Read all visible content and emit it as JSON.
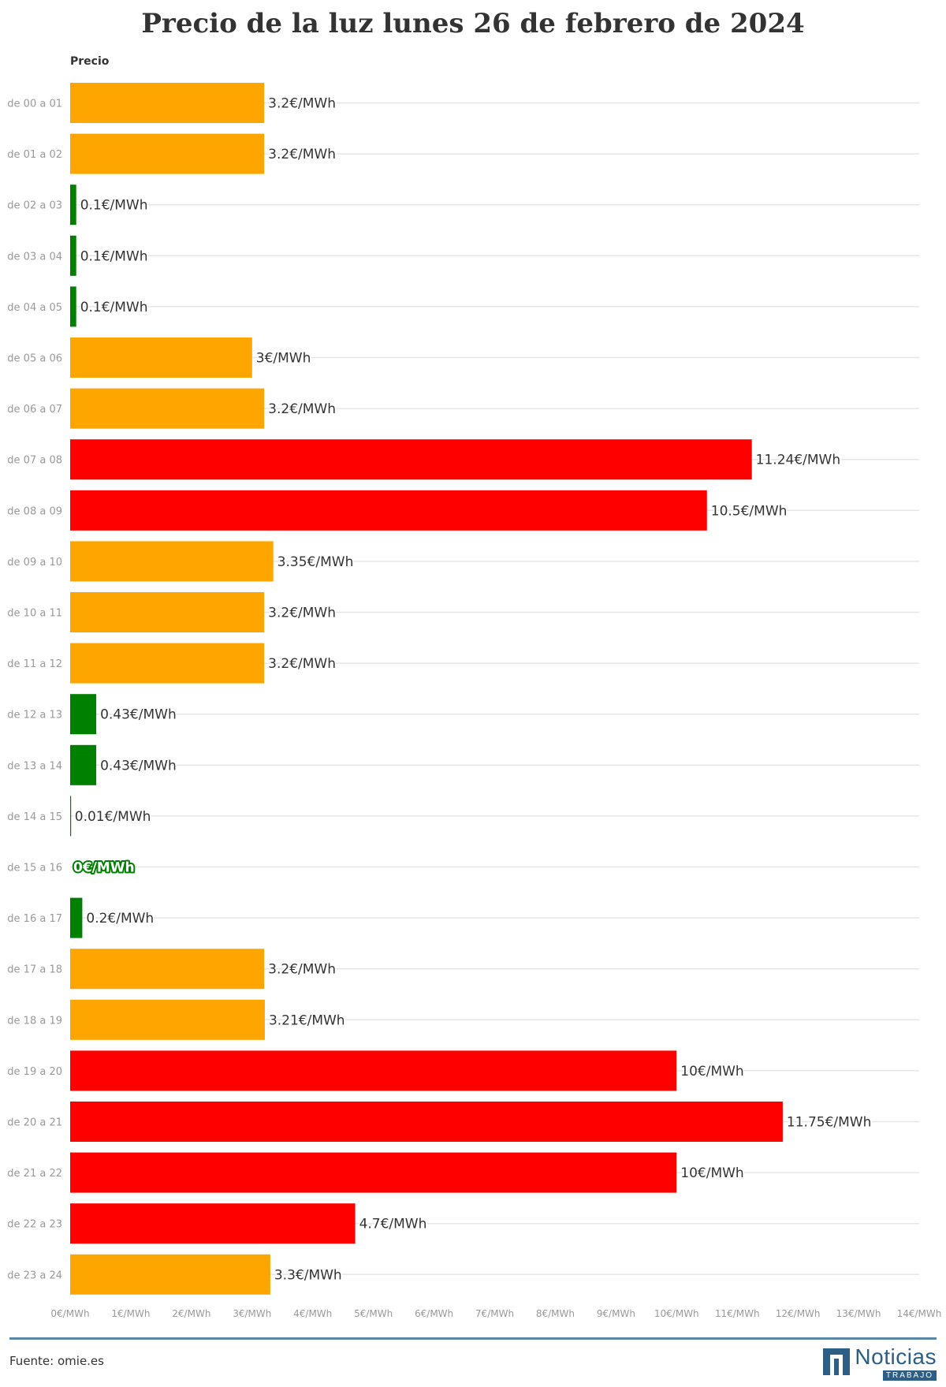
{
  "title": "Precio de la luz lunes 26 de febrero de 2024",
  "colors": {
    "orange": "#ffa500",
    "green": "#008000",
    "red": "#ff0000",
    "grid": "#e6e6e6",
    "text": "#333333",
    "muted": "#999999",
    "rule": "#5a87a8"
  },
  "chart_data": {
    "type": "bar",
    "orientation": "horizontal",
    "column_header": "Precio",
    "categories": [
      "de 00 a 01",
      "de 01 a 02",
      "de 02 a 03",
      "de 03 a 04",
      "de 04 a 05",
      "de 05 a 06",
      "de 06 a 07",
      "de 07 a 08",
      "de 08 a 09",
      "de 09 a 10",
      "de 10 a 11",
      "de 11 a 12",
      "de 12 a 13",
      "de 13 a 14",
      "de 14 a 15",
      "de 15 a 16",
      "de 16 a 17",
      "de 17 a 18",
      "de 18 a 19",
      "de 19 a 20",
      "de 20 a 21",
      "de 21 a 22",
      "de 22 a 23",
      "de 23 a 24"
    ],
    "values": [
      3.2,
      3.2,
      0.1,
      0.1,
      0.1,
      3,
      3.2,
      11.24,
      10.5,
      3.35,
      3.2,
      3.2,
      0.43,
      0.43,
      0.01,
      0,
      0.2,
      3.2,
      3.21,
      10,
      11.75,
      10,
      4.7,
      3.3
    ],
    "value_labels": [
      "3.2€/MWh",
      "3.2€/MWh",
      "0.1€/MWh",
      "0.1€/MWh",
      "0.1€/MWh",
      "3€/MWh",
      "3.2€/MWh",
      "11.24€/MWh",
      "10.5€/MWh",
      "3.35€/MWh",
      "3.2€/MWh",
      "3.2€/MWh",
      "0.43€/MWh",
      "0.43€/MWh",
      "0.01€/MWh",
      "0€/MWh",
      "0.2€/MWh",
      "3.2€/MWh",
      "3.21€/MWh",
      "10€/MWh",
      "11.75€/MWh",
      "10€/MWh",
      "4.7€/MWh",
      "3.3€/MWh"
    ],
    "bar_colors": [
      "orange",
      "orange",
      "green",
      "green",
      "green",
      "orange",
      "orange",
      "red",
      "red",
      "orange",
      "orange",
      "orange",
      "green",
      "green",
      "green",
      "green",
      "green",
      "orange",
      "orange",
      "red",
      "red",
      "red",
      "red",
      "orange"
    ],
    "xlim": [
      0,
      14
    ],
    "x_ticks": [
      "0€/MWh",
      "1€/MWh",
      "2€/MWh",
      "3€/MWh",
      "4€/MWh",
      "5€/MWh",
      "6€/MWh",
      "7€/MWh",
      "8€/MWh",
      "9€/MWh",
      "10€/MWh",
      "11€/MWh",
      "12€/MWh",
      "13€/MWh",
      "14€/MWh"
    ],
    "grid": true
  },
  "footer": {
    "source": "Fuente: omie.es",
    "logo_name": "Noticias",
    "logo_sub": "TRABAJO"
  }
}
